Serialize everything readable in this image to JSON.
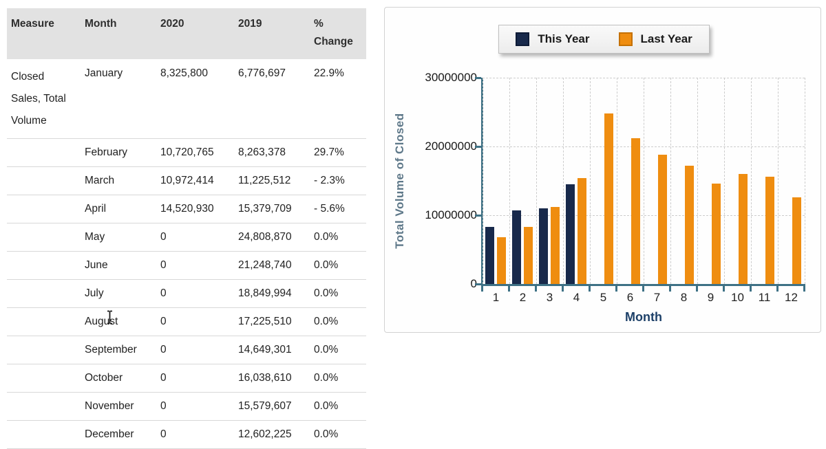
{
  "table": {
    "headers": [
      "Measure",
      "Month",
      "2020",
      "2019",
      "%\nChange"
    ],
    "rows": [
      {
        "measure": "Closed Sales, Total Volume",
        "month": "January",
        "y2020": "8,325,800",
        "y2019": "6,776,697",
        "pct": "22.9%"
      },
      {
        "measure": "",
        "month": "February",
        "y2020": "10,720,765",
        "y2019": "8,263,378",
        "pct": "29.7%"
      },
      {
        "measure": "",
        "month": "March",
        "y2020": "10,972,414",
        "y2019": "11,225,512",
        "pct": "- 2.3%"
      },
      {
        "measure": "",
        "month": "April",
        "y2020": "14,520,930",
        "y2019": "15,379,709",
        "pct": "- 5.6%"
      },
      {
        "measure": "",
        "month": "May",
        "y2020": "0",
        "y2019": "24,808,870",
        "pct": "0.0%"
      },
      {
        "measure": "",
        "month": "June",
        "y2020": "0",
        "y2019": "21,248,740",
        "pct": "0.0%"
      },
      {
        "measure": "",
        "month": "July",
        "y2020": "0",
        "y2019": "18,849,994",
        "pct": "0.0%"
      },
      {
        "measure": "",
        "month": "August",
        "y2020": "0",
        "y2019": "17,225,510",
        "pct": "0.0%"
      },
      {
        "measure": "",
        "month": "September",
        "y2020": "0",
        "y2019": "14,649,301",
        "pct": "0.0%"
      },
      {
        "measure": "",
        "month": "October",
        "y2020": "0",
        "y2019": "16,038,610",
        "pct": "0.0%"
      },
      {
        "measure": "",
        "month": "November",
        "y2020": "0",
        "y2019": "15,579,607",
        "pct": "0.0%"
      },
      {
        "measure": "",
        "month": "December",
        "y2020": "0",
        "y2019": "12,602,225",
        "pct": "0.0%"
      }
    ]
  },
  "chart_data": {
    "type": "bar",
    "categories": [
      "1",
      "2",
      "3",
      "4",
      "5",
      "6",
      "7",
      "8",
      "9",
      "10",
      "11",
      "12"
    ],
    "series": [
      {
        "name": "This Year",
        "color": "#18294b",
        "border": "#0d1b36",
        "values": [
          8325800,
          10720765,
          10972414,
          14520930,
          0,
          0,
          0,
          0,
          0,
          0,
          0,
          0
        ]
      },
      {
        "name": "Last Year",
        "color": "#ef8d10",
        "border": "#c57104",
        "values": [
          6776697,
          8263378,
          11225512,
          15379709,
          24808870,
          21248740,
          18849994,
          17225510,
          14649301,
          16038610,
          15579607,
          12602225
        ]
      }
    ],
    "xlabel": "Month",
    "ylabel": "Total Volume of Closed",
    "ylim": [
      0,
      30000000
    ],
    "yticks": [
      0,
      10000000,
      20000000,
      30000000
    ],
    "grid": true,
    "legend_position": "top",
    "colors": {
      "axis": "#3e7185",
      "grid": "#cccccc",
      "ylabel_text": "#5e7889",
      "xlabel_text": "#1d4068"
    }
  },
  "cursor": {
    "type": "i-beam-text-cursor"
  }
}
